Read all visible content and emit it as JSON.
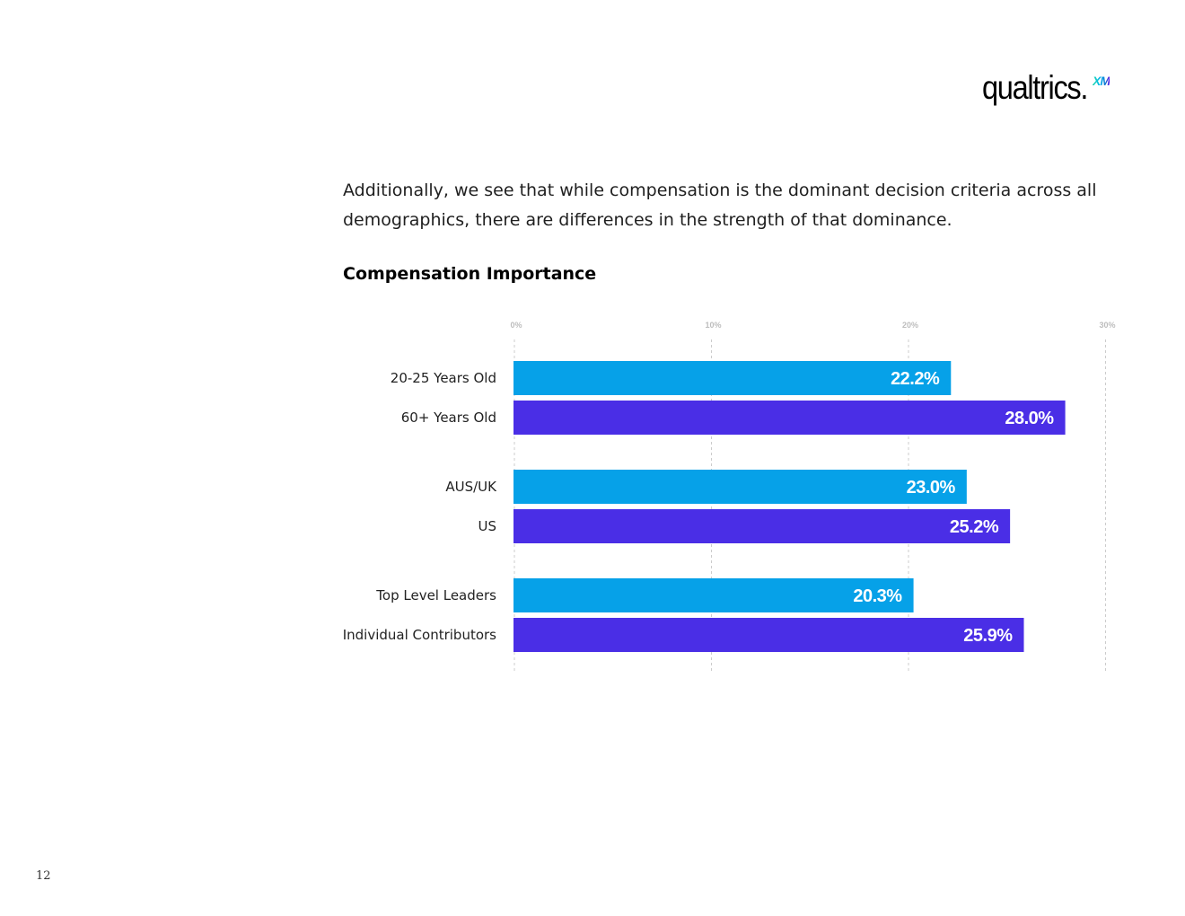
{
  "brand": {
    "logo_text": "qualtrics.",
    "logo_badge": "XM"
  },
  "intro_text": "Additionally, we see that while compensation is the dominant decision criteria across all demographics, there are differences in the strength of that dominance.",
  "page_number": "12",
  "colors": {
    "bar_light": "#06a1e8",
    "bar_dark": "#4a2ee6",
    "grid": "#cccccc",
    "tick_label": "#bdbdbd"
  },
  "chart_data": {
    "type": "bar",
    "orientation": "horizontal",
    "title": "Compensation Importance",
    "xlabel": "",
    "ylabel": "",
    "xlim": [
      0,
      30
    ],
    "x_ticks": [
      "0%",
      "10%",
      "20%",
      "30%"
    ],
    "x_tick_values": [
      0,
      10,
      20,
      30
    ],
    "grid": true,
    "grid_style": "dashed vertical",
    "groups": [
      {
        "bars": [
          {
            "label": "20-25 Years Old",
            "value": 22.2,
            "value_label": "22.2%",
            "color": "#06a1e8"
          },
          {
            "label": "60+ Years Old",
            "value": 28.0,
            "value_label": "28.0%",
            "color": "#4a2ee6"
          }
        ]
      },
      {
        "bars": [
          {
            "label": "AUS/UK",
            "value": 23.0,
            "value_label": "23.0%",
            "color": "#06a1e8"
          },
          {
            "label": "US",
            "value": 25.2,
            "value_label": "25.2%",
            "color": "#4a2ee6"
          }
        ]
      },
      {
        "bars": [
          {
            "label": "Top Level Leaders",
            "value": 20.3,
            "value_label": "20.3%",
            "color": "#06a1e8"
          },
          {
            "label": "Individual Contributors",
            "value": 25.9,
            "value_label": "25.9%",
            "color": "#4a2ee6"
          }
        ]
      }
    ]
  }
}
